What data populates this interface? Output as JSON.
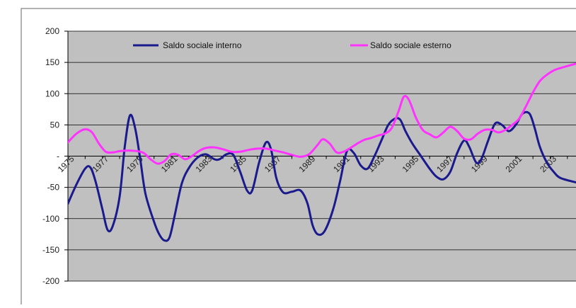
{
  "chart_data": {
    "type": "line",
    "ylim": [
      -200,
      200
    ],
    "y_ticks": [
      "200",
      "150",
      "100",
      "50",
      "-",
      "-50",
      "-100",
      "-150",
      "-200"
    ],
    "x_ticks": [
      "1975",
      "1977",
      "1979",
      "1981",
      "1983",
      "1985",
      "1987",
      "1989",
      "1991",
      "1993",
      "1995",
      "1997",
      "1999",
      "2001",
      "2003"
    ],
    "xlim": [
      1975,
      2004.5
    ],
    "grid": true,
    "legend_position": "top",
    "colors": {
      "plot_bg": "#c0c0c0",
      "grid": "#000000",
      "border": "#808080",
      "series_interno": "#1a1a8c",
      "series_esterno": "#ff33ff"
    },
    "series": [
      {
        "name": "Saldo sociale interno",
        "color": "#1a1a8c",
        "points": [
          [
            1975,
            -76
          ],
          [
            1975.5,
            -45
          ],
          [
            1976,
            -20
          ],
          [
            1976.3,
            -18
          ],
          [
            1976.6,
            -40
          ],
          [
            1977,
            -85
          ],
          [
            1977.3,
            -118
          ],
          [
            1977.6,
            -112
          ],
          [
            1978,
            -65
          ],
          [
            1978.3,
            15
          ],
          [
            1978.6,
            65
          ],
          [
            1978.9,
            45
          ],
          [
            1979.2,
            -5
          ],
          [
            1979.5,
            -60
          ],
          [
            1980,
            -105
          ],
          [
            1980.3,
            -125
          ],
          [
            1980.6,
            -135
          ],
          [
            1980.9,
            -130
          ],
          [
            1981.2,
            -95
          ],
          [
            1981.6,
            -45
          ],
          [
            1982,
            -20
          ],
          [
            1982.5,
            -3
          ],
          [
            1983,
            3
          ],
          [
            1983.5,
            -5
          ],
          [
            1983.8,
            -5
          ],
          [
            1984.2,
            3
          ],
          [
            1984.6,
            2
          ],
          [
            1985,
            -25
          ],
          [
            1985.4,
            -55
          ],
          [
            1985.7,
            -55
          ],
          [
            1986.1,
            -10
          ],
          [
            1986.5,
            22
          ],
          [
            1986.8,
            10
          ],
          [
            1987.1,
            -35
          ],
          [
            1987.5,
            -58
          ],
          [
            1988,
            -57
          ],
          [
            1988.5,
            -55
          ],
          [
            1988.9,
            -75
          ],
          [
            1989.2,
            -110
          ],
          [
            1989.5,
            -125
          ],
          [
            1989.9,
            -120
          ],
          [
            1990.4,
            -85
          ],
          [
            1990.8,
            -40
          ],
          [
            1991.2,
            8
          ],
          [
            1991.6,
            5
          ],
          [
            1992,
            -15
          ],
          [
            1992.4,
            -20
          ],
          [
            1992.8,
            0
          ],
          [
            1993.2,
            25
          ],
          [
            1993.6,
            50
          ],
          [
            1994,
            60
          ],
          [
            1994.3,
            58
          ],
          [
            1994.6,
            40
          ],
          [
            1995,
            20
          ],
          [
            1995.5,
            0
          ],
          [
            1996,
            -20
          ],
          [
            1996.4,
            -33
          ],
          [
            1996.8,
            -37
          ],
          [
            1997.2,
            -25
          ],
          [
            1997.6,
            5
          ],
          [
            1998,
            25
          ],
          [
            1998.3,
            15
          ],
          [
            1998.7,
            -10
          ],
          [
            1999,
            -5
          ],
          [
            1999.4,
            25
          ],
          [
            1999.8,
            52
          ],
          [
            2000.2,
            50
          ],
          [
            2000.6,
            40
          ],
          [
            2001,
            50
          ],
          [
            2001.4,
            68
          ],
          [
            2001.8,
            68
          ],
          [
            2002.1,
            45
          ],
          [
            2002.4,
            15
          ],
          [
            2002.8,
            -10
          ],
          [
            2003.2,
            -25
          ],
          [
            2003.6,
            -35
          ],
          [
            2004.5,
            -42
          ]
        ]
      },
      {
        "name": "Saldo sociale esterno",
        "color": "#ff33ff",
        "points": [
          [
            1975,
            22
          ],
          [
            1975.5,
            36
          ],
          [
            1976,
            43
          ],
          [
            1976.4,
            38
          ],
          [
            1976.8,
            20
          ],
          [
            1977.2,
            7
          ],
          [
            1977.6,
            6
          ],
          [
            1978,
            8
          ],
          [
            1978.5,
            9
          ],
          [
            1979,
            8
          ],
          [
            1979.4,
            5
          ],
          [
            1979.8,
            -5
          ],
          [
            1980.2,
            -12
          ],
          [
            1980.6,
            -8
          ],
          [
            1981,
            3
          ],
          [
            1981.4,
            2
          ],
          [
            1981.8,
            -5
          ],
          [
            1982.2,
            0
          ],
          [
            1982.6,
            8
          ],
          [
            1983,
            13
          ],
          [
            1983.5,
            14
          ],
          [
            1984,
            11
          ],
          [
            1984.5,
            7
          ],
          [
            1985,
            7
          ],
          [
            1985.5,
            10
          ],
          [
            1986,
            12
          ],
          [
            1986.5,
            12
          ],
          [
            1987,
            9
          ],
          [
            1987.5,
            6
          ],
          [
            1988,
            2
          ],
          [
            1988.5,
            -1
          ],
          [
            1989,
            3
          ],
          [
            1989.5,
            18
          ],
          [
            1989.8,
            27
          ],
          [
            1990.2,
            20
          ],
          [
            1990.6,
            6
          ],
          [
            1991,
            7
          ],
          [
            1991.4,
            13
          ],
          [
            1991.8,
            20
          ],
          [
            1992.2,
            26
          ],
          [
            1992.6,
            29
          ],
          [
            1993,
            33
          ],
          [
            1993.4,
            36
          ],
          [
            1993.8,
            45
          ],
          [
            1994.2,
            72
          ],
          [
            1994.5,
            95
          ],
          [
            1994.8,
            90
          ],
          [
            1995.2,
            62
          ],
          [
            1995.6,
            42
          ],
          [
            1996,
            35
          ],
          [
            1996.4,
            30
          ],
          [
            1996.8,
            38
          ],
          [
            1997.2,
            47
          ],
          [
            1997.6,
            40
          ],
          [
            1998,
            28
          ],
          [
            1998.4,
            27
          ],
          [
            1998.8,
            36
          ],
          [
            1999.2,
            42
          ],
          [
            1999.6,
            42
          ],
          [
            2000,
            38
          ],
          [
            2000.4,
            42
          ],
          [
            2000.8,
            50
          ],
          [
            2001.2,
            60
          ],
          [
            2001.6,
            80
          ],
          [
            2002,
            102
          ],
          [
            2002.4,
            120
          ],
          [
            2002.8,
            130
          ],
          [
            2003.2,
            137
          ],
          [
            2003.6,
            141
          ],
          [
            2004.5,
            148
          ]
        ]
      }
    ]
  }
}
